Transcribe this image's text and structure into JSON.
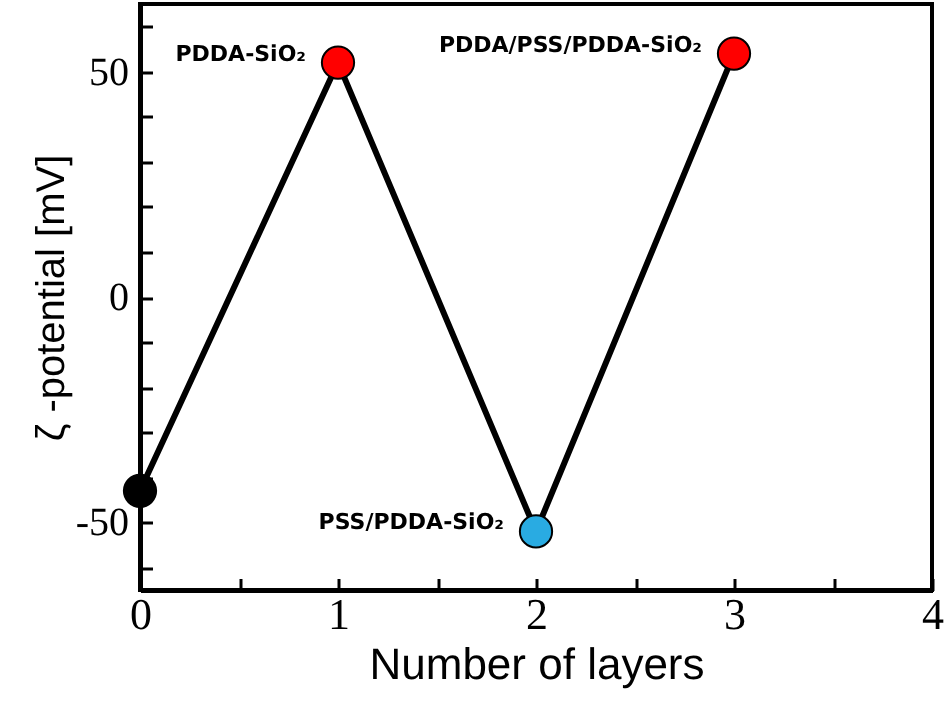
{
  "chart_data": {
    "type": "line",
    "xlabel": "Number of layers",
    "ylabel": "ζ -potential [mV]",
    "x": [
      0,
      1,
      2,
      3
    ],
    "series": [
      {
        "color": "#000000",
        "colors": [
          "#000000",
          "#ff0000",
          "#29abe2",
          "#ff0000"
        ],
        "values": [
          -43,
          52,
          -52,
          54
        ]
      }
    ],
    "marker": "circle",
    "line_style": "solid",
    "xlim": [
      0,
      4
    ],
    "xticks": [
      0,
      {
        "value": 0.5,
        "label": null
      },
      1,
      {
        "value": 1.5,
        "label": null
      },
      2,
      {
        "value": 2.5,
        "label": null
      },
      3,
      {
        "value": 3.5,
        "label": null
      },
      4
    ],
    "ylim": [
      -65,
      65
    ],
    "yticks": [
      {
        "value": -60,
        "label": null
      },
      -50,
      {
        "value": -40,
        "label": null
      },
      {
        "value": -30,
        "label": null
      },
      {
        "value": -20,
        "label": null
      },
      {
        "value": -10,
        "label": null
      },
      0,
      {
        "value": 10,
        "label": null
      },
      {
        "value": 20,
        "label": null
      },
      {
        "value": 30,
        "label": null
      },
      {
        "value": 40,
        "label": null
      },
      50,
      {
        "value": 60,
        "label": null
      }
    ],
    "annotations": [
      {
        "text": "PDDA-SiO₂",
        "x": 1,
        "y": 52
      },
      {
        "text": "PSS/PDDA-SiO₂",
        "x": 2,
        "y": -52
      },
      {
        "text": "PDDA/PSS/PDDA-SiO₂",
        "x": 3,
        "y": 54
      }
    ]
  }
}
